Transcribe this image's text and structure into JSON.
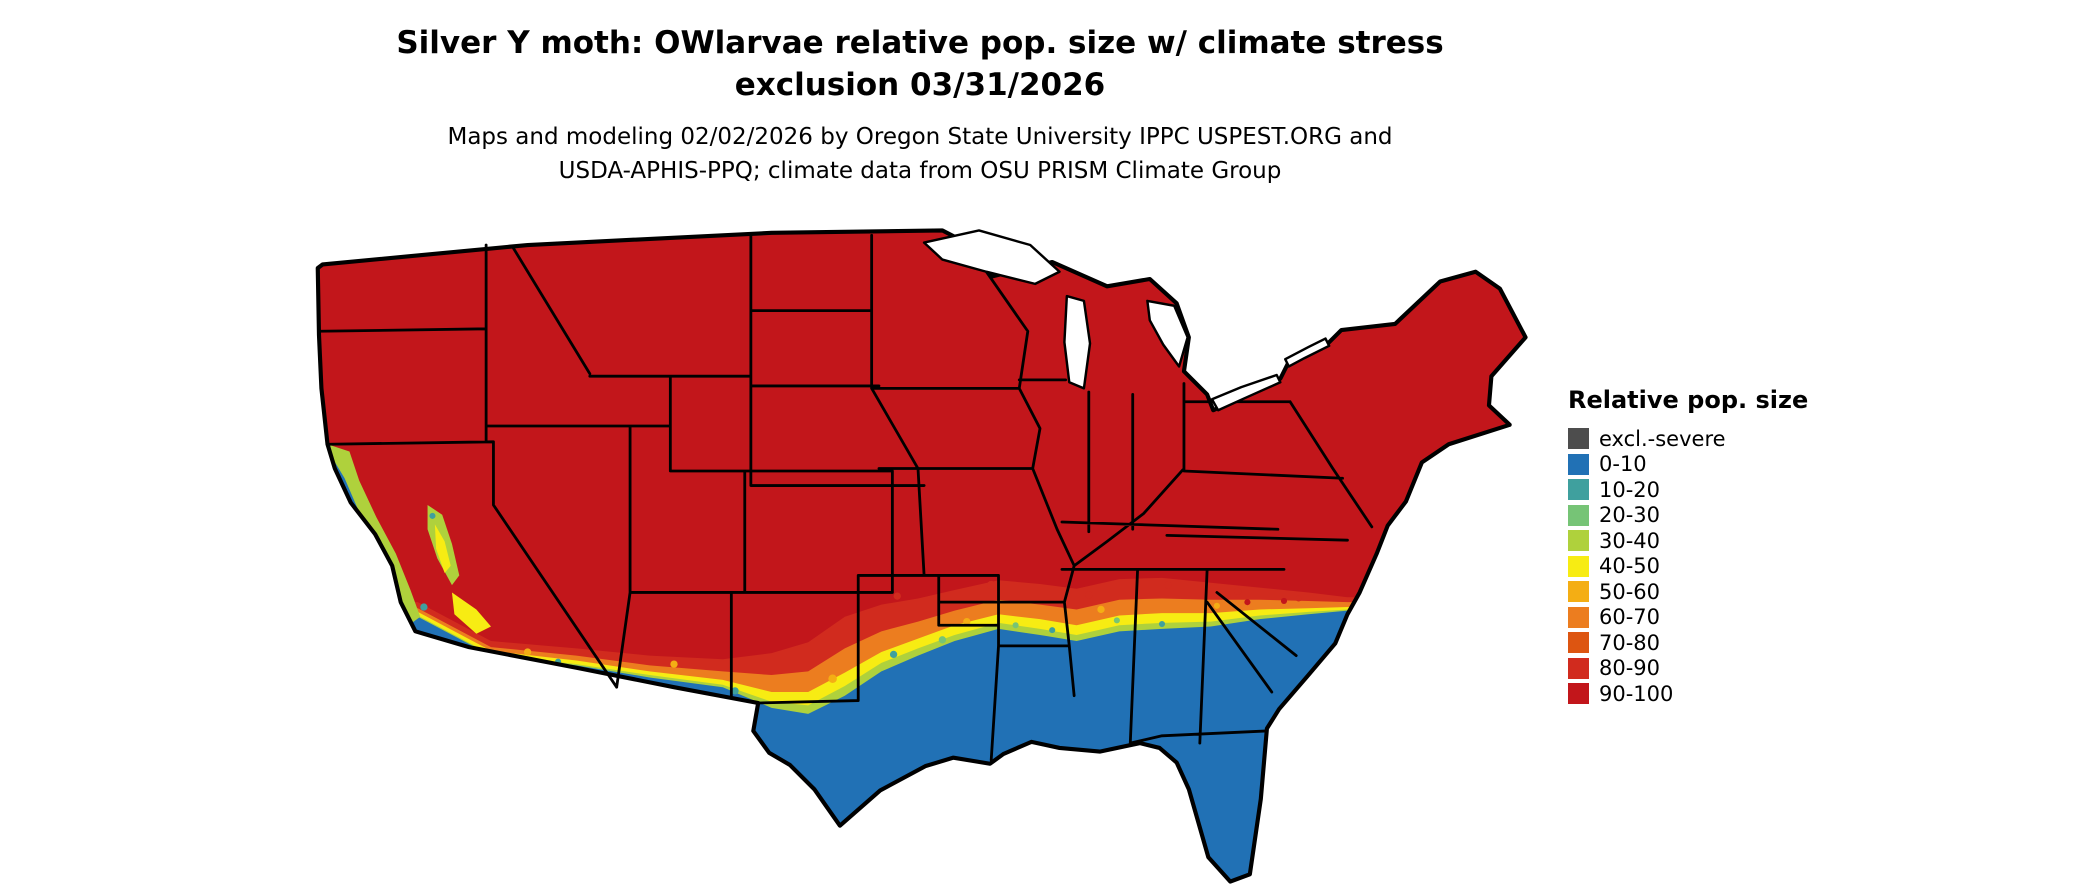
{
  "title": {
    "line1": "Silver Y moth: OWlarvae relative pop. size w/ climate stress",
    "line2": "exclusion 03/31/2026"
  },
  "subtitle": {
    "line1": "Maps and modeling 02/02/2026 by Oregon State University IPPC USPEST.ORG and",
    "line2": "USDA-APHIS-PPQ; climate data from OSU PRISM Climate Group"
  },
  "legend": {
    "title": "Relative pop. size",
    "items": [
      {
        "label": "excl.-severe",
        "color": "#4D4D4D"
      },
      {
        "label": "0-10",
        "color": "#2171B5"
      },
      {
        "label": "10-20",
        "color": "#3FA09E"
      },
      {
        "label": "20-30",
        "color": "#76C476"
      },
      {
        "label": "30-40",
        "color": "#AFD13C"
      },
      {
        "label": "40-50",
        "color": "#F7EC13"
      },
      {
        "label": "50-60",
        "color": "#F4AE14"
      },
      {
        "label": "60-70",
        "color": "#EC7D1F"
      },
      {
        "label": "70-80",
        "color": "#DD5511"
      },
      {
        "label": "80-90",
        "color": "#D12B1E"
      },
      {
        "label": "90-100",
        "color": "#C2161B"
      }
    ]
  },
  "map": {
    "border_color": "#000000",
    "water_color": "#FFFFFF"
  }
}
